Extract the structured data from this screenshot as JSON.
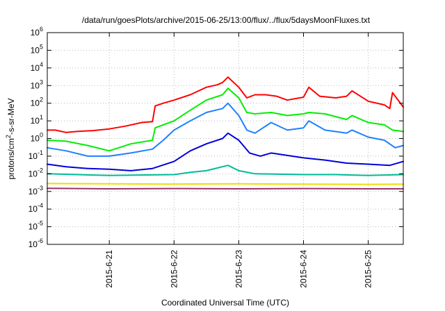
{
  "chart_data": {
    "type": "line",
    "title": "/data/run/goesPlots/archive/2015-06-25/13:00/flux/../flux/5daysMoonFluxes.txt",
    "xlabel": "Coordinated Universal Time (UTC)",
    "ylabel": {
      "prefix": "protons/cm",
      "superscript": "2",
      "suffix": "-s-sr-MeV"
    },
    "yscale": "log",
    "ylim": [
      1e-06,
      1000000.0
    ],
    "xlim": [
      "2015-06-20 01:00",
      "2015-06-25 13:00"
    ],
    "grid": true,
    "y_ticks": [
      {
        "base": "10",
        "exp": "-6",
        "value": 1e-06
      },
      {
        "base": "10",
        "exp": "-5",
        "value": 1e-05
      },
      {
        "base": "10",
        "exp": "-4",
        "value": 0.0001
      },
      {
        "base": "10",
        "exp": "-3",
        "value": 0.001
      },
      {
        "base": "10",
        "exp": "-2",
        "value": 0.01
      },
      {
        "base": "10",
        "exp": "-1",
        "value": 0.1
      },
      {
        "base": "10",
        "exp": "0",
        "value": 1
      },
      {
        "base": "10",
        "exp": "1",
        "value": 10
      },
      {
        "base": "10",
        "exp": "2",
        "value": 100
      },
      {
        "base": "10",
        "exp": "3",
        "value": 1000
      },
      {
        "base": "10",
        "exp": "4",
        "value": 10000
      },
      {
        "base": "10",
        "exp": "5",
        "value": 100000
      },
      {
        "base": "10",
        "exp": "6",
        "value": 1000000
      }
    ],
    "x_ticks": [
      {
        "label": "2015-6-21",
        "value": "2015-06-21 00:00"
      },
      {
        "label": "2015-6-22",
        "value": "2015-06-22 00:00"
      },
      {
        "label": "2015-6-23",
        "value": "2015-06-23 00:00"
      },
      {
        "label": "2015-6-24",
        "value": "2015-06-24 00:00"
      },
      {
        "label": "2015-6-25",
        "value": "2015-06-25 00:00"
      }
    ],
    "series": [
      {
        "color": "#ff0000",
        "x": [
          "2015-06-20 01:00",
          "2015-06-20 04:00",
          "2015-06-20 08:00",
          "2015-06-20 12:00",
          "2015-06-20 18:00",
          "2015-06-21 00:00",
          "2015-06-21 06:00",
          "2015-06-21 12:00",
          "2015-06-21 16:00",
          "2015-06-21 17:00",
          "2015-06-21 20:00",
          "2015-06-22 00:00",
          "2015-06-22 06:00",
          "2015-06-22 12:00",
          "2015-06-22 16:00",
          "2015-06-22 18:00",
          "2015-06-22 20:00",
          "2015-06-23 00:00",
          "2015-06-23 03:00",
          "2015-06-23 06:00",
          "2015-06-23 10:00",
          "2015-06-23 14:00",
          "2015-06-23 18:00",
          "2015-06-24 00:00",
          "2015-06-24 02:00",
          "2015-06-24 06:00",
          "2015-06-24 12:00",
          "2015-06-24 16:00",
          "2015-06-24 18:00",
          "2015-06-25 00:00",
          "2015-06-25 06:00",
          "2015-06-25 08:00",
          "2015-06-25 09:00",
          "2015-06-25 13:00"
        ],
        "y": [
          3,
          3,
          2.2,
          2.5,
          2.8,
          3.5,
          5,
          8,
          9,
          70,
          100,
          150,
          300,
          800,
          1100,
          1500,
          3000,
          800,
          200,
          300,
          300,
          250,
          150,
          220,
          800,
          250,
          200,
          250,
          500,
          130,
          80,
          50,
          400,
          60
        ]
      },
      {
        "color": "#00ee00",
        "x": [
          "2015-06-20 01:00",
          "2015-06-20 08:00",
          "2015-06-20 16:00",
          "2015-06-21 00:00",
          "2015-06-21 08:00",
          "2015-06-21 16:00",
          "2015-06-21 17:00",
          "2015-06-22 00:00",
          "2015-06-22 06:00",
          "2015-06-22 12:00",
          "2015-06-22 18:00",
          "2015-06-22 20:00",
          "2015-06-23 00:00",
          "2015-06-23 03:00",
          "2015-06-23 06:00",
          "2015-06-23 12:00",
          "2015-06-23 18:00",
          "2015-06-24 00:00",
          "2015-06-24 02:00",
          "2015-06-24 08:00",
          "2015-06-24 16:00",
          "2015-06-24 18:00",
          "2015-06-25 00:00",
          "2015-06-25 06:00",
          "2015-06-25 09:00",
          "2015-06-25 13:00"
        ],
        "y": [
          0.8,
          0.7,
          0.4,
          0.2,
          0.5,
          0.8,
          4,
          10,
          40,
          150,
          300,
          700,
          200,
          30,
          25,
          30,
          20,
          25,
          30,
          25,
          12,
          20,
          8,
          6,
          3,
          2.5
        ]
      },
      {
        "color": "#1e80ff",
        "x": [
          "2015-06-20 01:00",
          "2015-06-20 08:00",
          "2015-06-20 16:00",
          "2015-06-21 00:00",
          "2015-06-21 08:00",
          "2015-06-21 16:00",
          "2015-06-21 20:00",
          "2015-06-22 00:00",
          "2015-06-22 06:00",
          "2015-06-22 12:00",
          "2015-06-22 18:00",
          "2015-06-22 20:00",
          "2015-06-23 00:00",
          "2015-06-23 03:00",
          "2015-06-23 06:00",
          "2015-06-23 12:00",
          "2015-06-23 18:00",
          "2015-06-24 00:00",
          "2015-06-24 02:00",
          "2015-06-24 08:00",
          "2015-06-24 16:00",
          "2015-06-24 18:00",
          "2015-06-25 00:00",
          "2015-06-25 06:00",
          "2015-06-25 10:00",
          "2015-06-25 13:00"
        ],
        "y": [
          0.3,
          0.2,
          0.1,
          0.1,
          0.15,
          0.25,
          0.8,
          3,
          10,
          30,
          50,
          100,
          20,
          3,
          2,
          8,
          3,
          4,
          10,
          3,
          2,
          3,
          1.2,
          0.8,
          0.3,
          0.4
        ]
      },
      {
        "color": "#0000dd",
        "x": [
          "2015-06-20 01:00",
          "2015-06-20 08:00",
          "2015-06-20 16:00",
          "2015-06-21 00:00",
          "2015-06-21 08:00",
          "2015-06-21 16:00",
          "2015-06-22 00:00",
          "2015-06-22 06:00",
          "2015-06-22 12:00",
          "2015-06-22 18:00",
          "2015-06-22 20:00",
          "2015-06-23 00:00",
          "2015-06-23 04:00",
          "2015-06-23 08:00",
          "2015-06-23 12:00",
          "2015-06-24 00:00",
          "2015-06-24 08:00",
          "2015-06-24 16:00",
          "2015-06-25 00:00",
          "2015-06-25 08:00",
          "2015-06-25 13:00"
        ],
        "y": [
          0.035,
          0.025,
          0.02,
          0.018,
          0.015,
          0.02,
          0.05,
          0.2,
          0.5,
          1,
          2,
          0.8,
          0.15,
          0.1,
          0.15,
          0.08,
          0.06,
          0.04,
          0.035,
          0.03,
          0.05
        ]
      },
      {
        "color": "#00bb99",
        "x": [
          "2015-06-20 01:00",
          "2015-06-20 12:00",
          "2015-06-21 00:00",
          "2015-06-21 12:00",
          "2015-06-22 00:00",
          "2015-06-22 06:00",
          "2015-06-22 12:00",
          "2015-06-22 20:00",
          "2015-06-23 00:00",
          "2015-06-23 06:00",
          "2015-06-24 00:00",
          "2015-06-24 12:00",
          "2015-06-25 00:00",
          "2015-06-25 13:00"
        ],
        "y": [
          0.01,
          0.009,
          0.008,
          0.0085,
          0.009,
          0.012,
          0.015,
          0.03,
          0.015,
          0.01,
          0.009,
          0.009,
          0.008,
          0.009
        ]
      },
      {
        "color": "#eedd00",
        "x": [
          "2015-06-20 01:00",
          "2015-06-21 00:00",
          "2015-06-22 00:00",
          "2015-06-23 00:00",
          "2015-06-24 00:00",
          "2015-06-25 00:00",
          "2015-06-25 13:00"
        ],
        "y": [
          0.0028,
          0.0027,
          0.0026,
          0.0027,
          0.0026,
          0.0025,
          0.0026
        ]
      },
      {
        "color": "#993366",
        "x": [
          "2015-06-20 01:00",
          "2015-06-21 00:00",
          "2015-06-22 00:00",
          "2015-06-23 00:00",
          "2015-06-24 00:00",
          "2015-06-25 00:00",
          "2015-06-25 13:00"
        ],
        "y": [
          0.0015,
          0.0014,
          0.00145,
          0.0014,
          0.00145,
          0.0014,
          0.0014
        ]
      }
    ]
  }
}
